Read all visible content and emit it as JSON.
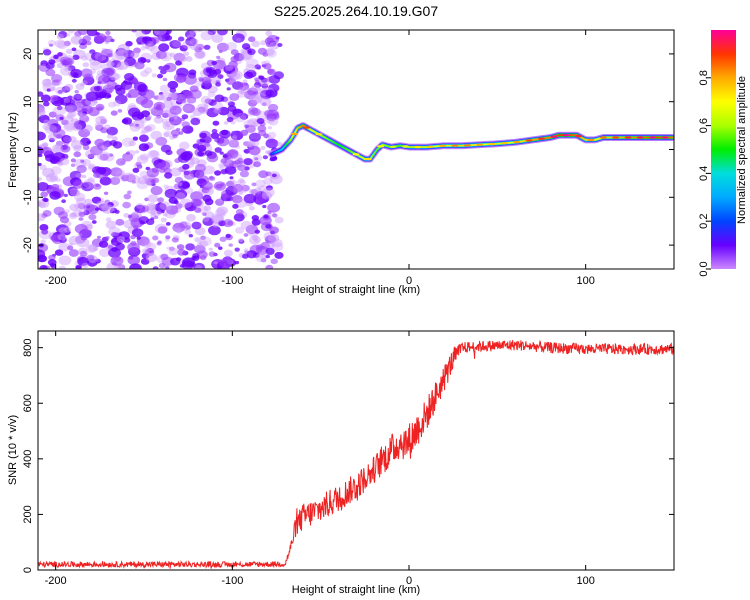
{
  "figure_title": "S225.2025.264.10.19.G07",
  "chart_data": [
    {
      "type": "heatmap",
      "title": "S225.2025.264.10.19.G07",
      "xlabel": "Height of straight line (km)",
      "ylabel": "Frequency (Hz)",
      "xlim": [
        -210,
        150
      ],
      "ylim": [
        -25,
        25
      ],
      "xticks": [
        -200,
        -100,
        0,
        100
      ],
      "xtick_labels": [
        "-200",
        "-100",
        "0",
        "100"
      ],
      "yticks": [
        -20,
        -10,
        0,
        10,
        20
      ],
      "ytick_labels": [
        "-20",
        "-10",
        "0",
        "10",
        "20"
      ],
      "colorbar": {
        "label": "Normalized spectral amplitude",
        "range": [
          0,
          1
        ],
        "ticks": [
          0,
          0.2,
          0.4,
          0.6,
          0.8
        ],
        "tick_labels": [
          "0.0",
          "0.2",
          "0.4",
          "0.6",
          "0.8"
        ],
        "colors": [
          "#cc88ff",
          "#6600ff",
          "#0044ff",
          "#00aaff",
          "#00dddd",
          "#00ee00",
          "#aaff00",
          "#ffff00",
          "#ffaa00",
          "#ff3300",
          "#ff0099"
        ]
      },
      "noise_region": {
        "x_range": [
          -210,
          -73
        ],
        "y_range": [
          -25,
          25
        ],
        "amplitude_range": [
          0.0,
          0.1
        ]
      },
      "ridge": {
        "x": [
          -78,
          -72,
          -67,
          -63,
          -60,
          -55,
          -50,
          -45,
          -40,
          -35,
          -30,
          -25,
          -22,
          -18,
          -15,
          -10,
          -5,
          0,
          10,
          20,
          30,
          40,
          50,
          60,
          70,
          80,
          85,
          90,
          95,
          100,
          105,
          110,
          120,
          130,
          140,
          150
        ],
        "frequency": [
          -1,
          0,
          2,
          4.5,
          5,
          4,
          3,
          2,
          1,
          0,
          -1,
          -2,
          -2,
          0,
          1,
          0.5,
          0.8,
          0.5,
          0.5,
          0.8,
          0.8,
          1,
          1.2,
          1.5,
          2,
          2.5,
          3,
          3,
          3,
          2,
          2,
          2.5,
          2.5,
          2.5,
          2.5,
          2.5
        ],
        "amplitude": [
          0.2,
          0.4,
          0.6,
          0.8,
          0.85,
          0.7,
          0.6,
          0.55,
          0.5,
          0.55,
          0.6,
          0.7,
          0.6,
          0.55,
          0.6,
          0.55,
          0.55,
          0.6,
          0.65,
          0.7,
          0.75,
          0.7,
          0.65,
          0.7,
          0.8,
          0.85,
          0.9,
          0.9,
          0.85,
          0.75,
          0.7,
          0.75,
          0.8,
          0.85,
          0.9,
          0.85
        ]
      }
    },
    {
      "type": "line",
      "xlabel": "Height of straight line (km)",
      "ylabel": "SNR (10 * v/v)",
      "xlim": [
        -210,
        150
      ],
      "ylim": [
        0,
        860
      ],
      "xticks": [
        -200,
        -100,
        0,
        100
      ],
      "xtick_labels": [
        "-200",
        "-100",
        "0",
        "100"
      ],
      "yticks": [
        0,
        200,
        400,
        600,
        800
      ],
      "ytick_labels": [
        "0",
        "200",
        "400",
        "600",
        "800"
      ],
      "color": "#ee2222",
      "series": [
        {
          "name": "SNR",
          "x": [
            -210,
            -180,
            -150,
            -120,
            -90,
            -70,
            -67,
            -64,
            -60,
            -50,
            -40,
            -30,
            -20,
            -10,
            -5,
            0,
            10,
            20,
            25,
            30,
            40,
            60,
            80,
            100,
            120,
            150
          ],
          "y": [
            20,
            20,
            20,
            20,
            20,
            22,
            80,
            160,
            190,
            220,
            260,
            300,
            360,
            430,
            460,
            460,
            560,
            690,
            760,
            800,
            805,
            810,
            800,
            795,
            795,
            795
          ],
          "noise_amplitude": [
            10,
            10,
            10,
            10,
            10,
            10,
            20,
            40,
            50,
            50,
            50,
            50,
            50,
            60,
            60,
            70,
            60,
            50,
            40,
            20,
            20,
            20,
            20,
            20,
            20,
            20
          ]
        }
      ]
    }
  ]
}
